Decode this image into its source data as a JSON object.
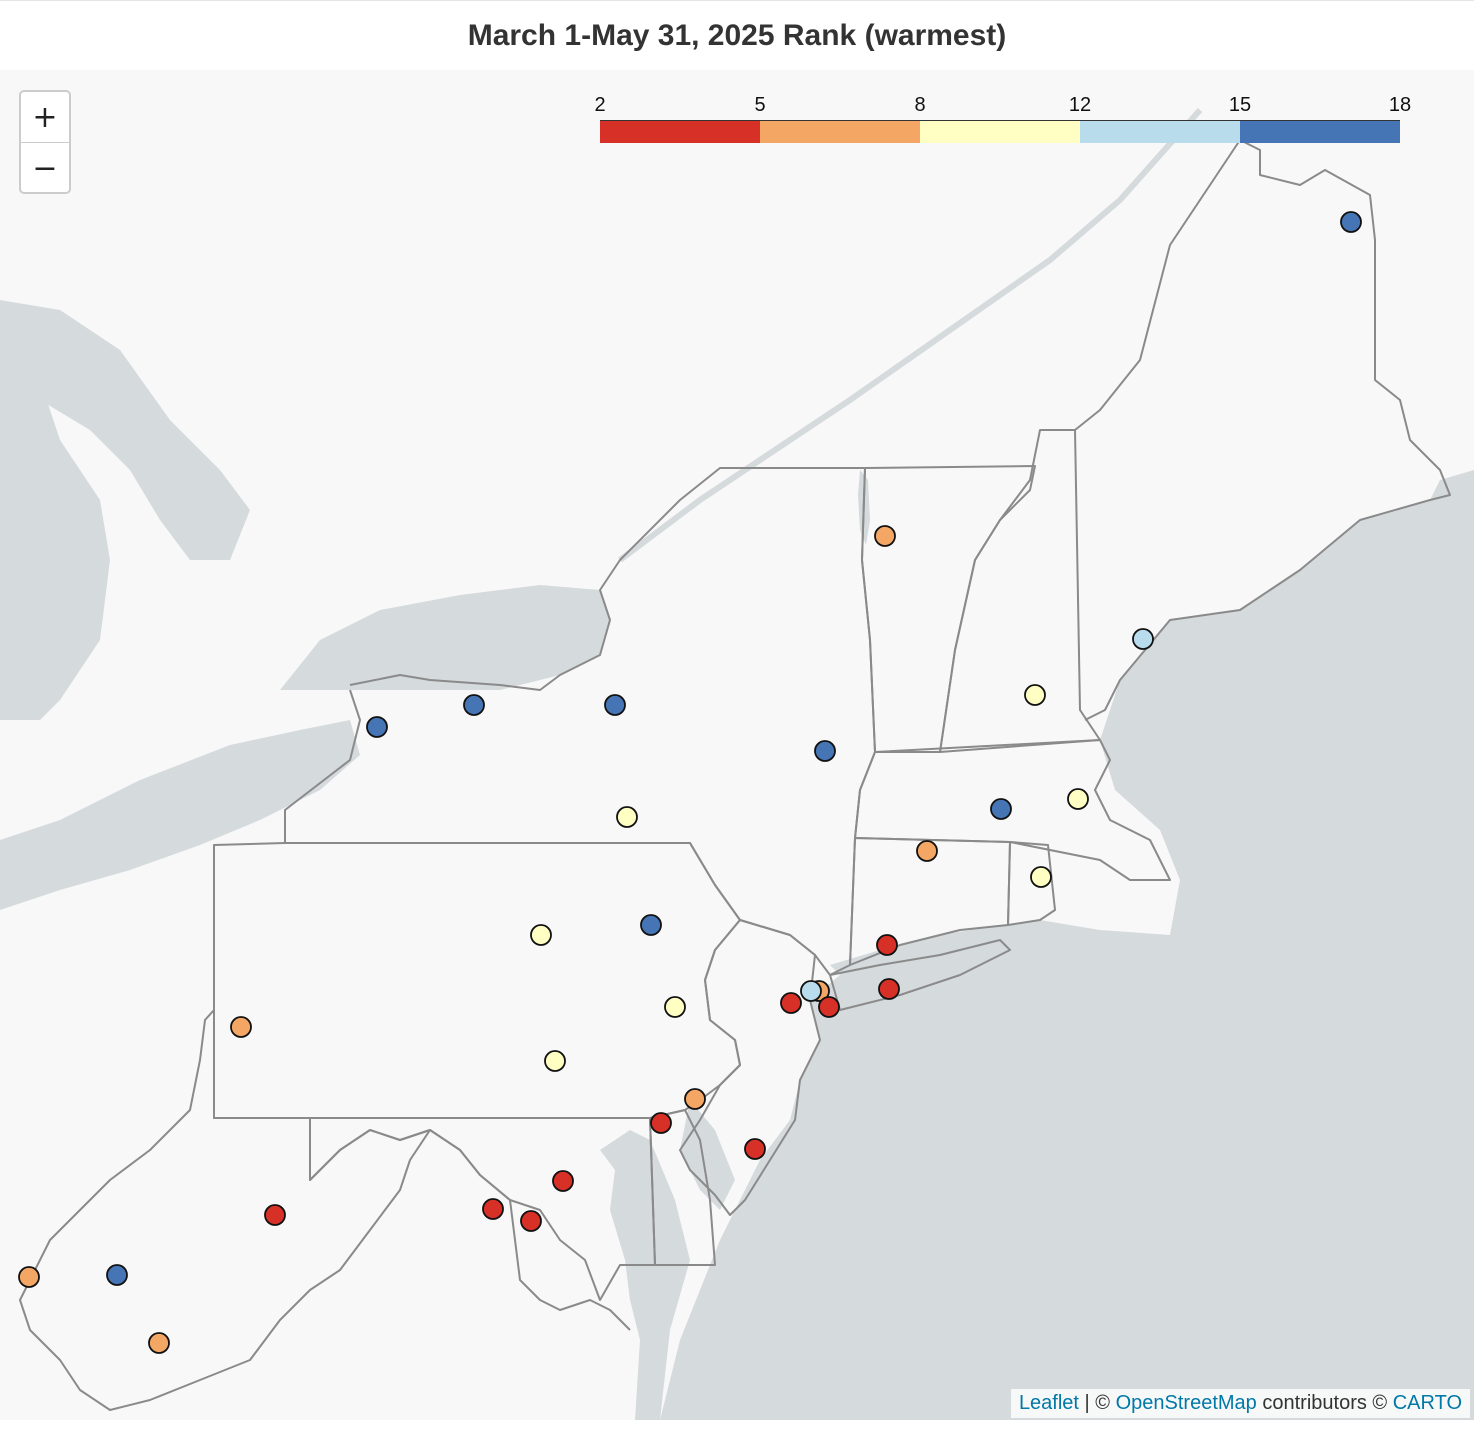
{
  "title": "March 1-May 31, 2025 Rank (warmest)",
  "zoom": {
    "in_label": "+",
    "out_label": "−"
  },
  "legend": {
    "ticks": [
      "2",
      "5",
      "8",
      "12",
      "15",
      "18"
    ],
    "colors": [
      "#d73027",
      "#fdae61",
      "#ffffbf",
      "#b9dcec",
      "#4575b4"
    ]
  },
  "attribution": {
    "leaflet": "Leaflet",
    "sep": " | © ",
    "osm": "OpenStreetMap",
    "contrib": " contributors © ",
    "carto": "CARTO"
  },
  "colors": {
    "water": "#d5dadd",
    "land": "#f8f8f8",
    "border": "#8a8a8a",
    "rank_2_5": "#d73027",
    "rank_5_8": "#f4a765",
    "rank_8_12": "#ffffc4",
    "rank_12_15": "#b9dcec",
    "rank_15_18": "#4575b4"
  }
}
